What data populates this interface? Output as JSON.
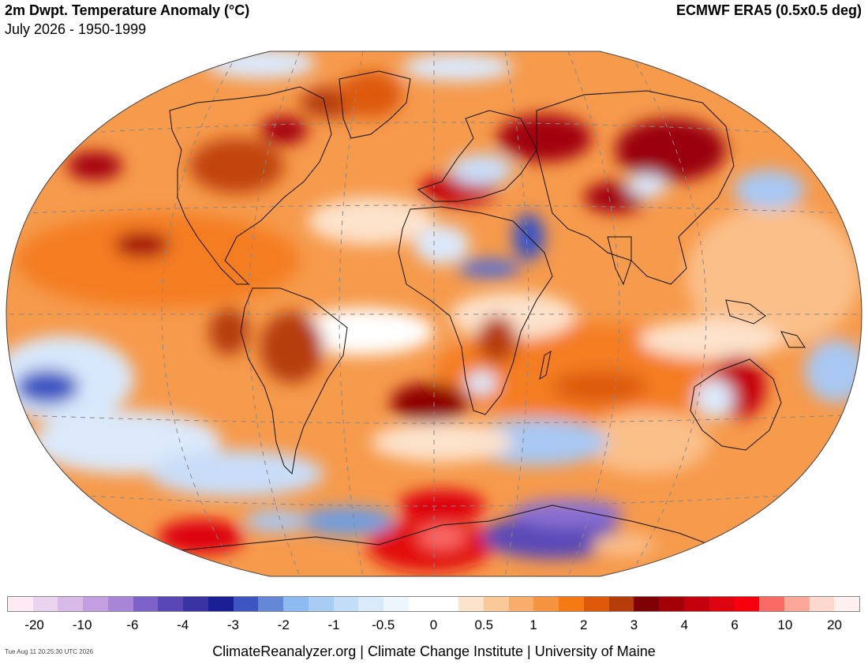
{
  "header": {
    "title": "2m Dwpt. Temperature Anomaly (°C)",
    "subtitle": "July 2026 - 1950-1999",
    "source": "ECMWF ERA5 (0.5x0.5 deg)"
  },
  "legend": {
    "colors": [
      "#fdeaf2",
      "#e9d3ef",
      "#d8b9e8",
      "#c39ee0",
      "#a985d7",
      "#7c62c8",
      "#5847b4",
      "#3a33a3",
      "#1a1f93",
      "#3c55c0",
      "#6588d6",
      "#8dbaf0",
      "#a7cdf5",
      "#c2ddf8",
      "#daeafb",
      "#edf5fd",
      "#ffffff",
      "#ffffff",
      "#fde2cc",
      "#fbc898",
      "#f9ad6b",
      "#f69340",
      "#f57a14",
      "#dd5a0a",
      "#b63c0a",
      "#7f0004",
      "#a30008",
      "#c4000c",
      "#dd0610",
      "#f6000e",
      "#fb6b66",
      "#fca898",
      "#fdd8cc",
      "#fff0f0"
    ],
    "ticks": [
      {
        "label": "-20",
        "pos": 0.032
      },
      {
        "label": "-10",
        "pos": 0.088
      },
      {
        "label": "-6",
        "pos": 0.147
      },
      {
        "label": "-4",
        "pos": 0.206
      },
      {
        "label": "-3",
        "pos": 0.265
      },
      {
        "label": "-2",
        "pos": 0.324
      },
      {
        "label": "-1",
        "pos": 0.383
      },
      {
        "label": "-0.5",
        "pos": 0.441
      },
      {
        "label": "0",
        "pos": 0.5
      },
      {
        "label": "0.5",
        "pos": 0.559
      },
      {
        "label": "1",
        "pos": 0.617
      },
      {
        "label": "2",
        "pos": 0.676
      },
      {
        "label": "3",
        "pos": 0.735
      },
      {
        "label": "4",
        "pos": 0.794
      },
      {
        "label": "6",
        "pos": 0.853
      },
      {
        "label": "10",
        "pos": 0.912
      },
      {
        "label": "20",
        "pos": 0.97
      }
    ]
  },
  "footer": {
    "timestamp": "Tue Aug 11 20:25:30 UTC 2026",
    "credits": "ClimateReanalyzer.org | Climate Change Institute | University of Maine"
  }
}
